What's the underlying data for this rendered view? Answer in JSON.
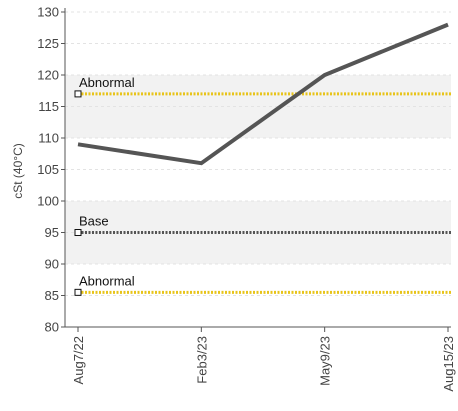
{
  "chart_data": {
    "type": "line",
    "ylabel": "cSt (40°C)",
    "xlabel": "",
    "ylim": [
      80,
      130
    ],
    "yticks": [
      80,
      85,
      90,
      95,
      100,
      105,
      110,
      115,
      120,
      125,
      130
    ],
    "categories": [
      "Aug7/22",
      "Feb3/23",
      "May9/23",
      "Aug15/23"
    ],
    "series": [
      {
        "values": [
          109,
          106,
          120,
          128
        ],
        "color": "#555555"
      }
    ],
    "reference_lines": [
      {
        "label": "Abnormal",
        "value": 117,
        "color": "#e8c41a",
        "style": "dotted"
      },
      {
        "label": "Base",
        "value": 95,
        "color": "#555555",
        "style": "dotted"
      },
      {
        "label": "Abnormal",
        "value": 85.5,
        "color": "#e8c41a",
        "style": "dotted"
      }
    ],
    "grid": "alternating horizontal bands",
    "band_color": "#f2f2f2",
    "x_tick_rotation": "vertical"
  }
}
